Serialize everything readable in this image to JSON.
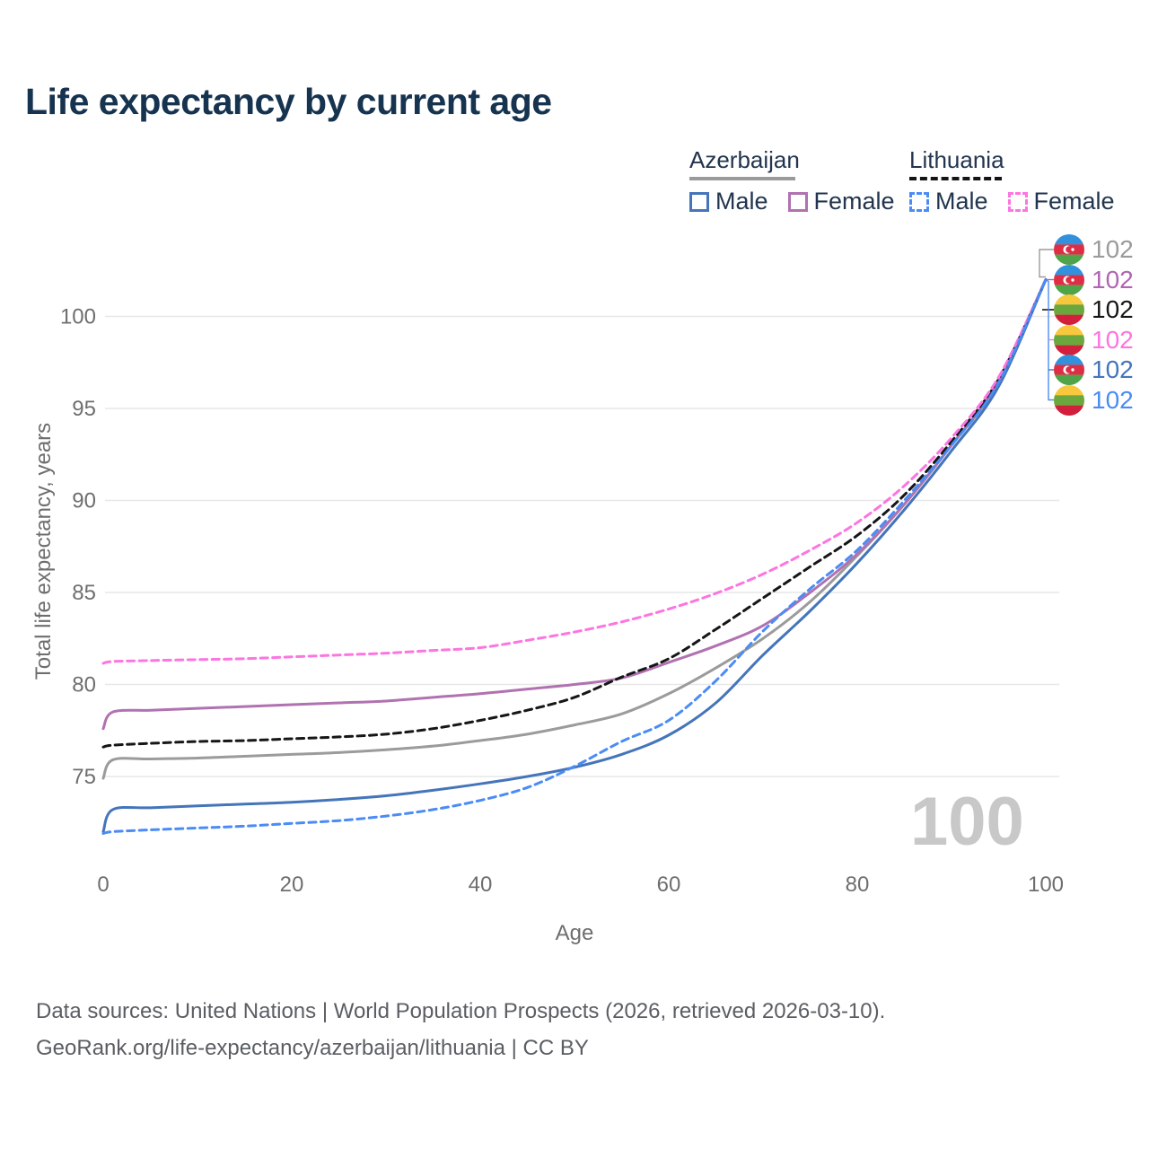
{
  "title": "Life expectancy by current age",
  "watermark": "100",
  "legend": {
    "groups": [
      {
        "name": "Azerbaijan",
        "underline_style": "solid",
        "underline_color": "#9a9a9a",
        "items": [
          {
            "label": "Male",
            "color": "#4475ba",
            "dashed": false
          },
          {
            "label": "Female",
            "color": "#b072b0",
            "dashed": false
          }
        ]
      },
      {
        "name": "Lithuania",
        "underline_style": "dashed",
        "underline_color": "#141414",
        "items": [
          {
            "label": "Male",
            "color": "#4a8cf5",
            "dashed": true
          },
          {
            "label": "Female",
            "color": "#fc75e1",
            "dashed": true
          }
        ]
      }
    ]
  },
  "chart_data": {
    "type": "line",
    "title": "Life expectancy by current age",
    "xlabel": "Age",
    "ylabel": "Total life expectancy, years",
    "x_ticks": [
      0,
      20,
      40,
      60,
      80,
      100
    ],
    "y_ticks": [
      75,
      80,
      85,
      90,
      95,
      100
    ],
    "xlim": [
      0,
      100
    ],
    "ylim": [
      71.5,
      102.5
    ],
    "grid": "horizontal",
    "legend_position": "top-right",
    "hovered_age": 100,
    "ages": [
      0,
      1,
      5,
      10,
      15,
      20,
      25,
      30,
      35,
      40,
      45,
      50,
      55,
      60,
      65,
      70,
      75,
      80,
      85,
      90,
      95,
      100
    ],
    "series": [
      {
        "id": "azerbaijan-total",
        "name": "Azerbaijan",
        "country": "Azerbaijan",
        "sex": "Total",
        "color": "#9b9b9b",
        "dashed": false,
        "values": [
          74.9,
          75.9,
          75.95,
          76.0,
          76.1,
          76.2,
          76.3,
          76.45,
          76.65,
          76.95,
          77.3,
          77.8,
          78.4,
          79.5,
          80.9,
          82.5,
          84.5,
          87.0,
          89.8,
          93.0,
          96.4,
          102
        ]
      },
      {
        "id": "azerbaijan-female",
        "name": "Azerbaijan Female",
        "country": "Azerbaijan",
        "sex": "Female",
        "color": "#b072b0",
        "dashed": false,
        "values": [
          77.6,
          78.5,
          78.6,
          78.7,
          78.8,
          78.9,
          79.0,
          79.1,
          79.3,
          79.5,
          79.75,
          80.0,
          80.35,
          81.2,
          82.1,
          83.2,
          85.0,
          87.1,
          89.8,
          93.0,
          96.5,
          102
        ]
      },
      {
        "id": "lithuania-total",
        "name": "Lithuania",
        "country": "Lithuania",
        "sex": "Total",
        "color": "#161616",
        "dashed": true,
        "values": [
          76.6,
          76.7,
          76.8,
          76.9,
          76.95,
          77.05,
          77.15,
          77.3,
          77.6,
          78.05,
          78.6,
          79.3,
          80.4,
          81.4,
          83.0,
          84.7,
          86.4,
          88.1,
          90.3,
          93.2,
          96.6,
          102
        ]
      },
      {
        "id": "lithuania-female",
        "name": "Lithuania Female",
        "country": "Lithuania",
        "sex": "Female",
        "color": "#fc75e1",
        "dashed": true,
        "values": [
          81.15,
          81.25,
          81.3,
          81.35,
          81.4,
          81.5,
          81.6,
          81.7,
          81.85,
          82.0,
          82.4,
          82.85,
          83.4,
          84.1,
          84.95,
          86.0,
          87.3,
          88.8,
          90.8,
          93.4,
          96.7,
          102
        ]
      },
      {
        "id": "azerbaijan-male",
        "name": "Azerbaijan Male",
        "country": "Azerbaijan",
        "sex": "Male",
        "color": "#4475ba",
        "dashed": false,
        "values": [
          72.0,
          73.2,
          73.3,
          73.4,
          73.5,
          73.6,
          73.75,
          73.95,
          74.25,
          74.6,
          75.0,
          75.5,
          76.2,
          77.25,
          79.0,
          81.6,
          84.0,
          86.6,
          89.5,
          92.7,
          96.2,
          102
        ]
      },
      {
        "id": "lithuania-male",
        "name": "Lithuania Male",
        "country": "Lithuania",
        "sex": "Male",
        "color": "#4a8cf5",
        "dashed": true,
        "values": [
          71.9,
          72.0,
          72.1,
          72.2,
          72.3,
          72.45,
          72.6,
          72.85,
          73.2,
          73.7,
          74.4,
          75.55,
          76.9,
          78.05,
          80.2,
          82.9,
          85.2,
          87.3,
          90.0,
          93.0,
          96.4,
          102
        ]
      }
    ]
  },
  "endpoint_labels": [
    {
      "flag": "azerbaijan",
      "value": "102",
      "color": "#9b9b9b",
      "series": "azerbaijan-total"
    },
    {
      "flag": "azerbaijan",
      "value": "102",
      "color": "#b165b1",
      "series": "azerbaijan-female"
    },
    {
      "flag": "lithuania",
      "value": "102",
      "color": "#161616",
      "series": "lithuania-total"
    },
    {
      "flag": "lithuania",
      "value": "102",
      "color": "#fc75e1",
      "series": "lithuania-female"
    },
    {
      "flag": "azerbaijan",
      "value": "102",
      "color": "#4475ba",
      "series": "azerbaijan-male"
    },
    {
      "flag": "lithuania",
      "value": "102",
      "color": "#4a8cf5",
      "series": "lithuania-male"
    }
  ],
  "flag_colors": {
    "azerbaijan": {
      "top": "#3191dd",
      "middle": "#dd2e46",
      "bottom": "#4fa349",
      "emblem": "#ffffff"
    },
    "lithuania": {
      "top": "#f7c83d",
      "middle": "#6aa73c",
      "bottom": "#d2203c"
    }
  },
  "footer": {
    "line1": "Data sources: United Nations | World Population Prospects (2026, retrieved 2026-03-10).",
    "line2": "GeoRank.org/life-expectancy/azerbaijan/lithuania | CC BY"
  }
}
